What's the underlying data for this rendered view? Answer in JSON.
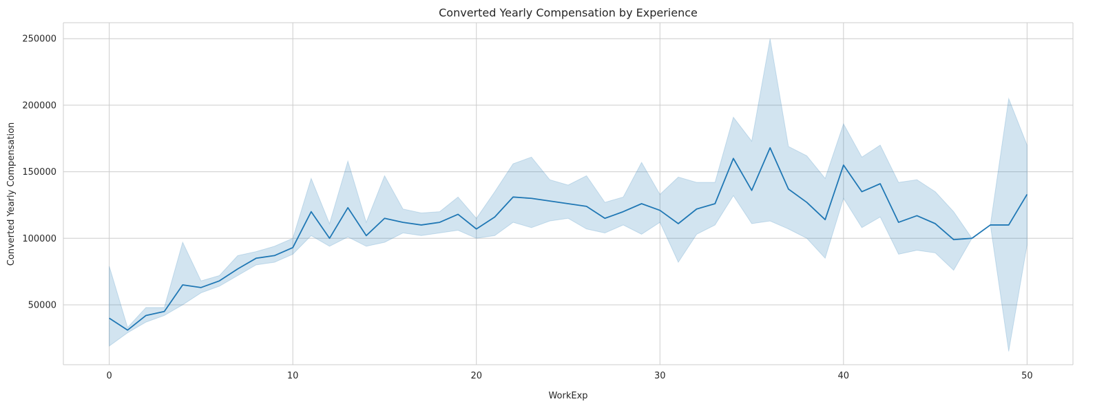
{
  "chart_data": {
    "type": "line",
    "title": "Converted Yearly Compensation by Experience",
    "xlabel": "WorkExp",
    "ylabel": "Converted Yearly Compensation",
    "xlim": [
      -2.5,
      52.5
    ],
    "ylim": [
      5000,
      262000
    ],
    "x_ticks": [
      0,
      10,
      20,
      30,
      40,
      50
    ],
    "y_ticks": [
      50000,
      100000,
      150000,
      200000,
      250000
    ],
    "grid": true,
    "colors": {
      "line": "#1f77b4",
      "band": "#1f77b4",
      "grid": "#cccccc",
      "spine": "#cccccc",
      "text": "#262626"
    },
    "series": [
      {
        "x": [
          0,
          1,
          2,
          3,
          4,
          5,
          6,
          7,
          8,
          9,
          10,
          11,
          12,
          13,
          14,
          15,
          16,
          17,
          18,
          19,
          20,
          21,
          22,
          23,
          24,
          25,
          26,
          27,
          28,
          29,
          30,
          31,
          32,
          33,
          34,
          35,
          36,
          37,
          38,
          39,
          40,
          41,
          42,
          43,
          44,
          45,
          46,
          47,
          48,
          49,
          50
        ],
        "y": [
          40000,
          31000,
          42000,
          45000,
          65000,
          63000,
          68000,
          77000,
          85000,
          87000,
          93000,
          120000,
          100000,
          123000,
          102000,
          115000,
          112000,
          110000,
          112000,
          118000,
          107000,
          116000,
          131000,
          130000,
          128000,
          126000,
          124000,
          115000,
          120000,
          126000,
          121000,
          111000,
          122000,
          126000,
          160000,
          136000,
          168000,
          137000,
          127000,
          114000,
          155000,
          135000,
          141000,
          112000,
          117000,
          111000,
          99000,
          100000,
          110000,
          110000,
          133000
        ],
        "ci_lower": [
          19000,
          29000,
          37000,
          42000,
          50000,
          59000,
          64000,
          72000,
          80000,
          82000,
          88000,
          102000,
          94000,
          101000,
          94000,
          97000,
          104000,
          102000,
          104000,
          106000,
          100000,
          102000,
          112000,
          108000,
          113000,
          115000,
          107000,
          104000,
          110000,
          103000,
          112000,
          82000,
          103000,
          110000,
          132000,
          111000,
          113000,
          107000,
          100000,
          85000,
          130000,
          108000,
          116000,
          88000,
          91000,
          89000,
          76000,
          100000,
          110000,
          15000,
          95000
        ],
        "ci_upper": [
          79000,
          33000,
          48000,
          48000,
          97000,
          68000,
          72000,
          87000,
          90000,
          94000,
          100000,
          145000,
          111000,
          158000,
          112000,
          147000,
          122000,
          119000,
          120000,
          131000,
          115000,
          135000,
          156000,
          161000,
          144000,
          140000,
          147000,
          127000,
          131000,
          157000,
          133000,
          146000,
          142000,
          142000,
          191000,
          173000,
          250000,
          169000,
          162000,
          145000,
          186000,
          161000,
          170000,
          142000,
          144000,
          135000,
          120000,
          100000,
          110000,
          205000,
          170000
        ]
      }
    ]
  }
}
